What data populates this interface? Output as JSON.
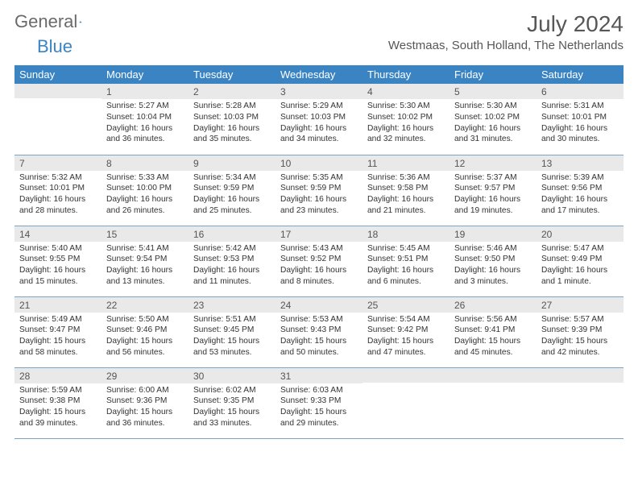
{
  "brand": {
    "part1": "General",
    "part2": "Blue"
  },
  "title": "July 2024",
  "location": "Westmaas, South Holland, The Netherlands",
  "colors": {
    "header_bg": "#3a84c4",
    "daynum_bg": "#e9e9e9",
    "rule": "#7aa4c4"
  },
  "weekdays": [
    "Sunday",
    "Monday",
    "Tuesday",
    "Wednesday",
    "Thursday",
    "Friday",
    "Saturday"
  ],
  "weeks": [
    [
      {
        "n": "",
        "lines": []
      },
      {
        "n": "1",
        "lines": [
          "Sunrise: 5:27 AM",
          "Sunset: 10:04 PM",
          "Daylight: 16 hours",
          "and 36 minutes."
        ]
      },
      {
        "n": "2",
        "lines": [
          "Sunrise: 5:28 AM",
          "Sunset: 10:03 PM",
          "Daylight: 16 hours",
          "and 35 minutes."
        ]
      },
      {
        "n": "3",
        "lines": [
          "Sunrise: 5:29 AM",
          "Sunset: 10:03 PM",
          "Daylight: 16 hours",
          "and 34 minutes."
        ]
      },
      {
        "n": "4",
        "lines": [
          "Sunrise: 5:30 AM",
          "Sunset: 10:02 PM",
          "Daylight: 16 hours",
          "and 32 minutes."
        ]
      },
      {
        "n": "5",
        "lines": [
          "Sunrise: 5:30 AM",
          "Sunset: 10:02 PM",
          "Daylight: 16 hours",
          "and 31 minutes."
        ]
      },
      {
        "n": "6",
        "lines": [
          "Sunrise: 5:31 AM",
          "Sunset: 10:01 PM",
          "Daylight: 16 hours",
          "and 30 minutes."
        ]
      }
    ],
    [
      {
        "n": "7",
        "lines": [
          "Sunrise: 5:32 AM",
          "Sunset: 10:01 PM",
          "Daylight: 16 hours",
          "and 28 minutes."
        ]
      },
      {
        "n": "8",
        "lines": [
          "Sunrise: 5:33 AM",
          "Sunset: 10:00 PM",
          "Daylight: 16 hours",
          "and 26 minutes."
        ]
      },
      {
        "n": "9",
        "lines": [
          "Sunrise: 5:34 AM",
          "Sunset: 9:59 PM",
          "Daylight: 16 hours",
          "and 25 minutes."
        ]
      },
      {
        "n": "10",
        "lines": [
          "Sunrise: 5:35 AM",
          "Sunset: 9:59 PM",
          "Daylight: 16 hours",
          "and 23 minutes."
        ]
      },
      {
        "n": "11",
        "lines": [
          "Sunrise: 5:36 AM",
          "Sunset: 9:58 PM",
          "Daylight: 16 hours",
          "and 21 minutes."
        ]
      },
      {
        "n": "12",
        "lines": [
          "Sunrise: 5:37 AM",
          "Sunset: 9:57 PM",
          "Daylight: 16 hours",
          "and 19 minutes."
        ]
      },
      {
        "n": "13",
        "lines": [
          "Sunrise: 5:39 AM",
          "Sunset: 9:56 PM",
          "Daylight: 16 hours",
          "and 17 minutes."
        ]
      }
    ],
    [
      {
        "n": "14",
        "lines": [
          "Sunrise: 5:40 AM",
          "Sunset: 9:55 PM",
          "Daylight: 16 hours",
          "and 15 minutes."
        ]
      },
      {
        "n": "15",
        "lines": [
          "Sunrise: 5:41 AM",
          "Sunset: 9:54 PM",
          "Daylight: 16 hours",
          "and 13 minutes."
        ]
      },
      {
        "n": "16",
        "lines": [
          "Sunrise: 5:42 AM",
          "Sunset: 9:53 PM",
          "Daylight: 16 hours",
          "and 11 minutes."
        ]
      },
      {
        "n": "17",
        "lines": [
          "Sunrise: 5:43 AM",
          "Sunset: 9:52 PM",
          "Daylight: 16 hours",
          "and 8 minutes."
        ]
      },
      {
        "n": "18",
        "lines": [
          "Sunrise: 5:45 AM",
          "Sunset: 9:51 PM",
          "Daylight: 16 hours",
          "and 6 minutes."
        ]
      },
      {
        "n": "19",
        "lines": [
          "Sunrise: 5:46 AM",
          "Sunset: 9:50 PM",
          "Daylight: 16 hours",
          "and 3 minutes."
        ]
      },
      {
        "n": "20",
        "lines": [
          "Sunrise: 5:47 AM",
          "Sunset: 9:49 PM",
          "Daylight: 16 hours",
          "and 1 minute."
        ]
      }
    ],
    [
      {
        "n": "21",
        "lines": [
          "Sunrise: 5:49 AM",
          "Sunset: 9:47 PM",
          "Daylight: 15 hours",
          "and 58 minutes."
        ]
      },
      {
        "n": "22",
        "lines": [
          "Sunrise: 5:50 AM",
          "Sunset: 9:46 PM",
          "Daylight: 15 hours",
          "and 56 minutes."
        ]
      },
      {
        "n": "23",
        "lines": [
          "Sunrise: 5:51 AM",
          "Sunset: 9:45 PM",
          "Daylight: 15 hours",
          "and 53 minutes."
        ]
      },
      {
        "n": "24",
        "lines": [
          "Sunrise: 5:53 AM",
          "Sunset: 9:43 PM",
          "Daylight: 15 hours",
          "and 50 minutes."
        ]
      },
      {
        "n": "25",
        "lines": [
          "Sunrise: 5:54 AM",
          "Sunset: 9:42 PM",
          "Daylight: 15 hours",
          "and 47 minutes."
        ]
      },
      {
        "n": "26",
        "lines": [
          "Sunrise: 5:56 AM",
          "Sunset: 9:41 PM",
          "Daylight: 15 hours",
          "and 45 minutes."
        ]
      },
      {
        "n": "27",
        "lines": [
          "Sunrise: 5:57 AM",
          "Sunset: 9:39 PM",
          "Daylight: 15 hours",
          "and 42 minutes."
        ]
      }
    ],
    [
      {
        "n": "28",
        "lines": [
          "Sunrise: 5:59 AM",
          "Sunset: 9:38 PM",
          "Daylight: 15 hours",
          "and 39 minutes."
        ]
      },
      {
        "n": "29",
        "lines": [
          "Sunrise: 6:00 AM",
          "Sunset: 9:36 PM",
          "Daylight: 15 hours",
          "and 36 minutes."
        ]
      },
      {
        "n": "30",
        "lines": [
          "Sunrise: 6:02 AM",
          "Sunset: 9:35 PM",
          "Daylight: 15 hours",
          "and 33 minutes."
        ]
      },
      {
        "n": "31",
        "lines": [
          "Sunrise: 6:03 AM",
          "Sunset: 9:33 PM",
          "Daylight: 15 hours",
          "and 29 minutes."
        ]
      },
      {
        "n": "",
        "lines": []
      },
      {
        "n": "",
        "lines": []
      },
      {
        "n": "",
        "lines": []
      }
    ]
  ]
}
